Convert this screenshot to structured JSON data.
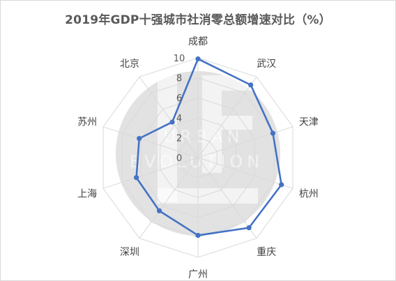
{
  "chart_data": {
    "type": "radar",
    "title": "2019年GDP十强城市社消零总额增速对比（%）",
    "categories": [
      "成都",
      "武汉",
      "天津",
      "杭州",
      "重庆",
      "广州",
      "深圳",
      "上海",
      "苏州",
      "北京"
    ],
    "values": [
      9.9,
      9.0,
      7.9,
      8.8,
      8.7,
      7.8,
      6.6,
      6.5,
      6.2,
      4.4
    ],
    "rlim": [
      0,
      10
    ],
    "ticks": [
      0,
      2,
      4,
      6,
      8,
      10
    ],
    "tick_labels": [
      "0",
      "2",
      "4",
      "6",
      "8",
      "10"
    ],
    "grid": true,
    "legend": "none",
    "colors": {
      "series": "#4472c4",
      "grid": "#d9d9d9",
      "watermark": "#bfbfbf"
    }
  },
  "watermark": {
    "logo_text": "UE",
    "line1": "URBAN",
    "line2": "EVOLUTION"
  }
}
